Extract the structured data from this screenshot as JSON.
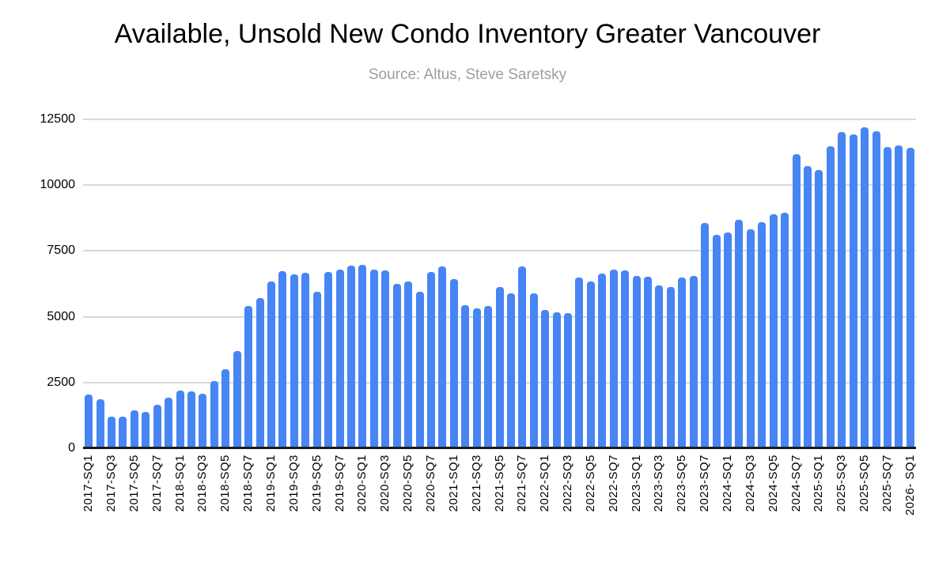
{
  "title": "Available, Unsold New Condo Inventory Greater Vancouver",
  "subtitle": "Source: Altus, Steve Saretsky",
  "colors": {
    "bar": "#4785f4",
    "gridline": "#d9d9d9",
    "axis": "#1a1a1a",
    "title": "#000000",
    "subtitle": "#9e9e9e",
    "background": "#ffffff"
  },
  "chart_data": {
    "type": "bar",
    "title": "Available, Unsold New Condo Inventory Greater Vancouver",
    "subtitle": "Source: Altus, Steve Saretsky",
    "ylabel": "",
    "xlabel": "",
    "ylim": [
      0,
      12500
    ],
    "yticks": [
      0,
      2500,
      5000,
      7500,
      10000,
      12500
    ],
    "ytick_labels": [
      "0",
      "2500",
      "5000",
      "7500",
      "10000",
      "12500"
    ],
    "grid": true,
    "legend": "none",
    "label_every": 2,
    "x_tick_labels": [
      "2017-SQ1",
      "2017-SQ3",
      "2017-SQ5",
      "2017-SQ7",
      "2018-SQ1",
      "2018-SQ3",
      "2018-SQ5",
      "2018-SQ7",
      "2019-SQ1",
      "2019-SQ3",
      "2019-SQ5",
      "2019-SQ7",
      "2020-SQ1",
      "2020-SQ3",
      "2020-SQ5",
      "2020-SQ7",
      "2021-SQ1",
      "2021-SQ3",
      "2021-SQ5",
      "2021-SQ7",
      "2022-SQ1",
      "2022-SQ3",
      "2022-SQ5",
      "2022-SQ7",
      "2023-SQ1",
      "2023-SQ3",
      "2023-SQ5",
      "2023-SQ7",
      "2024-SQ1",
      "2024-SQ3",
      "2024-SQ5",
      "2024-SQ7",
      "2025-SQ1",
      "2025-SQ3",
      "2025-SQ5",
      "2025-SQ7",
      "2026- SQ1"
    ],
    "values": [
      2050,
      1850,
      1200,
      1200,
      1430,
      1390,
      1650,
      1920,
      2190,
      2170,
      2060,
      2550,
      3000,
      3690,
      5400,
      5700,
      6330,
      6740,
      6600,
      6680,
      5950,
      6710,
      6780,
      6940,
      6960,
      6800,
      6760,
      6260,
      6330,
      5940,
      6700,
      6900,
      6440,
      5450,
      5330,
      5400,
      6120,
      5890,
      6900,
      5880,
      5270,
      5180,
      5150,
      6480,
      6350,
      6650,
      6780,
      6770,
      6540,
      6520,
      6180,
      6120,
      6490,
      6550,
      8570,
      8110,
      8190,
      8680,
      8310,
      8590,
      8900,
      8950,
      11170,
      10720,
      10590,
      11490,
      12030,
      11920,
      12190,
      12040,
      11440,
      11520,
      11420
    ]
  }
}
